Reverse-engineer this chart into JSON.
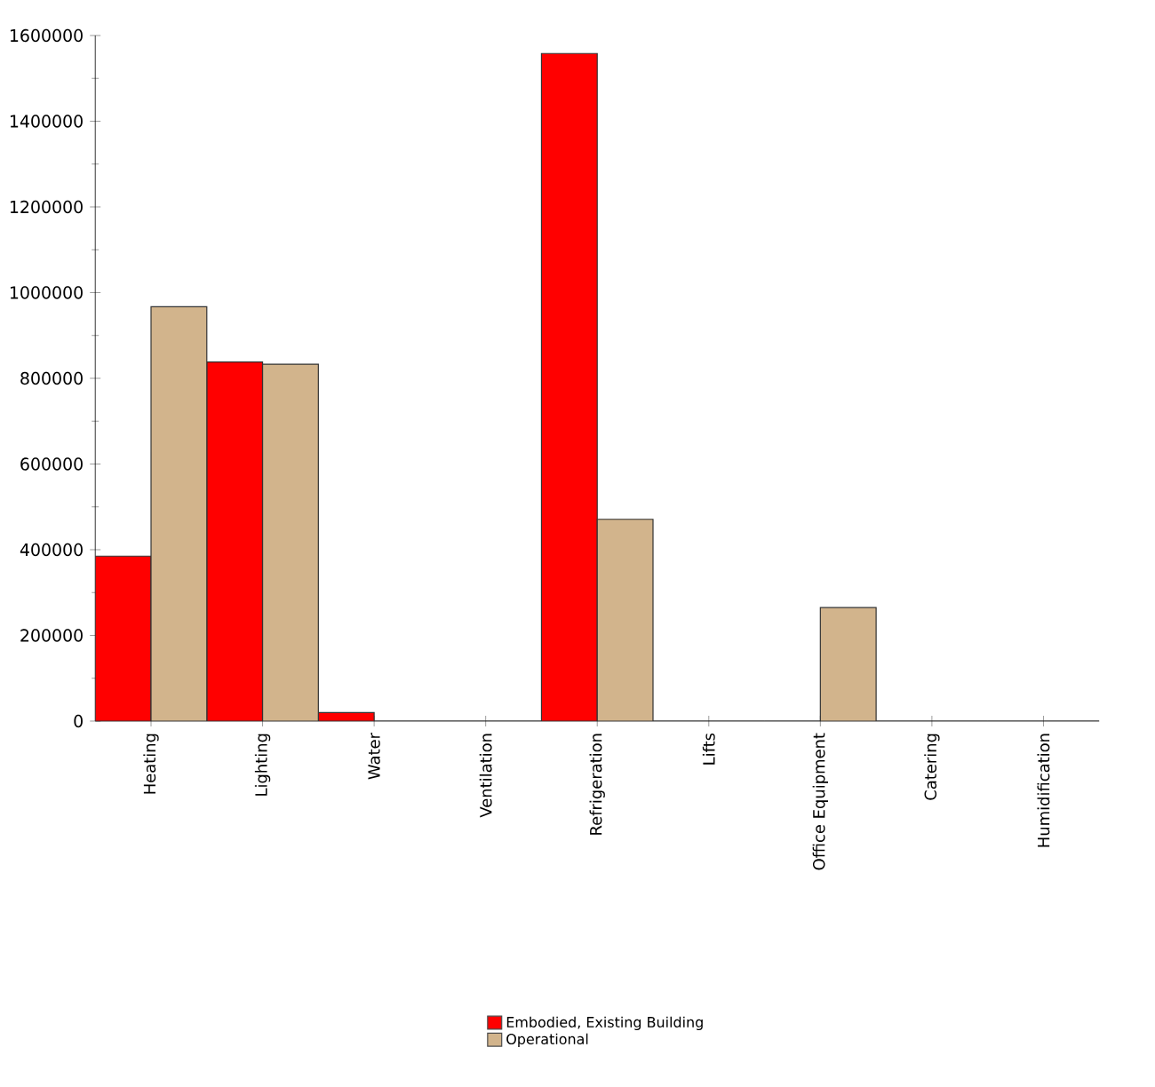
{
  "chart_data": {
    "type": "bar",
    "categories": [
      "Heating",
      "Lighting",
      "Water",
      "Ventilation",
      "Refrigeration",
      "Lifts",
      "Office Equipment",
      "Catering",
      "Humidification"
    ],
    "series": [
      {
        "name": "Embodied, Existing Building",
        "color": "#ff0000",
        "values": [
          385000,
          838000,
          20000,
          0,
          1558000,
          0,
          0,
          0,
          0
        ]
      },
      {
        "name": "Operational",
        "color": "#d2b48c",
        "values": [
          967000,
          833000,
          0,
          0,
          471000,
          0,
          265000,
          0,
          0
        ]
      }
    ],
    "ylim": [
      0,
      1600000
    ],
    "yticks": [
      0,
      200000,
      400000,
      600000,
      800000,
      1000000,
      1200000,
      1400000,
      1600000
    ],
    "grid": false,
    "legend": "bottom"
  }
}
